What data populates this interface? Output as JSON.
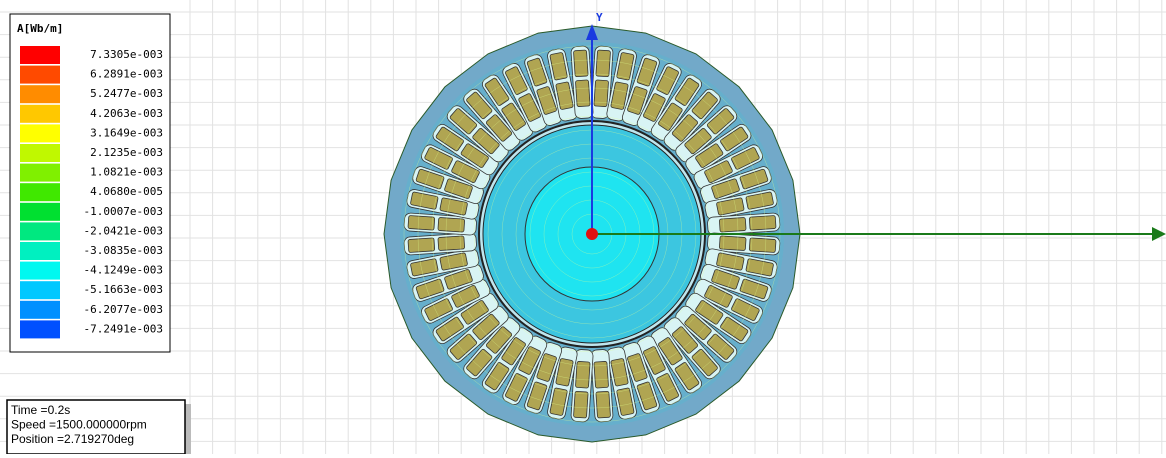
{
  "legend": {
    "title": "A[Wb/m]",
    "entries": [
      {
        "label": "7.3305e-003",
        "color": "#ff0000"
      },
      {
        "label": "6.2891e-003",
        "color": "#ff4a00"
      },
      {
        "label": "5.2477e-003",
        "color": "#ff8c00"
      },
      {
        "label": "4.2063e-003",
        "color": "#ffc800"
      },
      {
        "label": "3.1649e-003",
        "color": "#ffff00"
      },
      {
        "label": "2.1235e-003",
        "color": "#c0f800"
      },
      {
        "label": "1.0821e-003",
        "color": "#80f000"
      },
      {
        "label": "4.0680e-005",
        "color": "#40e800"
      },
      {
        "label": "-1.0007e-003",
        "color": "#00e030"
      },
      {
        "label": "-2.0421e-003",
        "color": "#00e880"
      },
      {
        "label": "-3.0835e-003",
        "color": "#00f0c0"
      },
      {
        "label": "-4.1249e-003",
        "color": "#00f8f0"
      },
      {
        "label": "-5.1663e-003",
        "color": "#00c8ff"
      },
      {
        "label": "-6.2077e-003",
        "color": "#0090ff"
      },
      {
        "label": "-7.2491e-003",
        "color": "#0050ff"
      }
    ]
  },
  "info": {
    "lines": [
      "Time =0.2s",
      "Speed =1500.000000rpm",
      "Position =2.719270deg"
    ]
  },
  "axis": {
    "y_label": "Y"
  }
}
